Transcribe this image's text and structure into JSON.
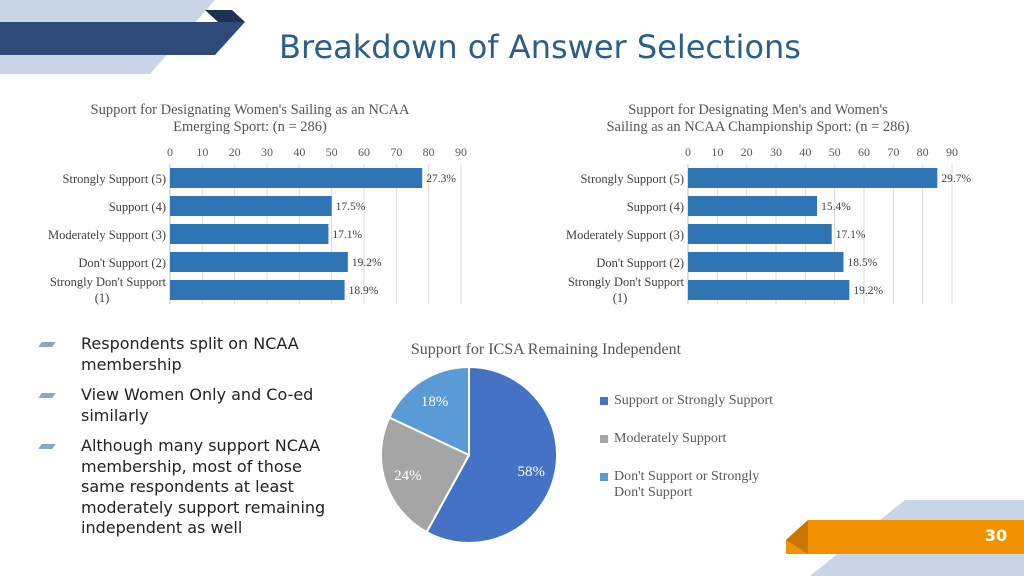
{
  "slide": {
    "title": "Breakdown of Answer Selections",
    "page_number": "30"
  },
  "bullets": [
    "Respondents split on NCAA membership",
    "View Women Only and Co-ed similarly",
    "Although many support NCAA membership, most of those same respondents at least moderately support remaining independent as well"
  ],
  "colors": {
    "title": "#2b5f8a",
    "bar": "#2e75b6",
    "pie": [
      "#4472c4",
      "#a5a5a5",
      "#5b9bd5"
    ],
    "accent_orange": "#f39200",
    "accent_navy": "#2d4a78"
  },
  "chart_data": [
    {
      "type": "bar",
      "orientation": "horizontal",
      "title_lines": [
        "Support for Designating Women's Sailing as an NCAA",
        "Emerging Sport: (n = 286)"
      ],
      "categories": [
        "Strongly Support (5)",
        "Support (4)",
        "Moderately Support (3)",
        "Don't Support (2)",
        "Strongly Don't Support (1)"
      ],
      "category_lines": [
        [
          "Strongly Support (5)"
        ],
        [
          "Support (4)"
        ],
        [
          "Moderately Support (3)"
        ],
        [
          "Don't Support (2)"
        ],
        [
          "Strongly Don't Support",
          "(1)"
        ]
      ],
      "values": [
        78,
        50,
        49,
        55,
        54
      ],
      "data_labels": [
        "27.3%",
        "17.5%",
        "17.1%",
        "19.2%",
        "18.9%"
      ],
      "xlim": [
        0,
        90
      ],
      "ticks": [
        "0",
        "10",
        "20",
        "30",
        "40",
        "50",
        "60",
        "70",
        "80",
        "90"
      ],
      "grid": true
    },
    {
      "type": "bar",
      "orientation": "horizontal",
      "title_lines": [
        "Support for Designating Men's and Women's",
        "Sailing as an NCAA Championship Sport: (n = 286)"
      ],
      "categories": [
        "Strongly Support (5)",
        "Support (4)",
        "Moderately Support (3)",
        "Don't Support (2)",
        "Strongly Don't Support (1)"
      ],
      "category_lines": [
        [
          "Strongly Support (5)"
        ],
        [
          "Support (4)"
        ],
        [
          "Moderately Support (3)"
        ],
        [
          "Don't Support (2)"
        ],
        [
          "Strongly Don't Support",
          "(1)"
        ]
      ],
      "values": [
        85,
        44,
        49,
        53,
        55
      ],
      "data_labels": [
        "29.7%",
        "15.4%",
        "17.1%",
        "18.5%",
        "19.2%"
      ],
      "xlim": [
        0,
        90
      ],
      "ticks": [
        "0",
        "10",
        "20",
        "30",
        "40",
        "50",
        "60",
        "70",
        "80",
        "90"
      ],
      "grid": true
    },
    {
      "type": "pie",
      "title": "Support for ICSA Remaining Independent",
      "slices": [
        {
          "label": "Support or Strongly Support",
          "value": 58,
          "display": "58%"
        },
        {
          "label": "Moderately Support",
          "value": 24,
          "display": "24%"
        },
        {
          "label": "Don't Support or Strongly Don't Support",
          "value": 18,
          "display": "18%"
        }
      ],
      "legend_position": "right"
    }
  ]
}
